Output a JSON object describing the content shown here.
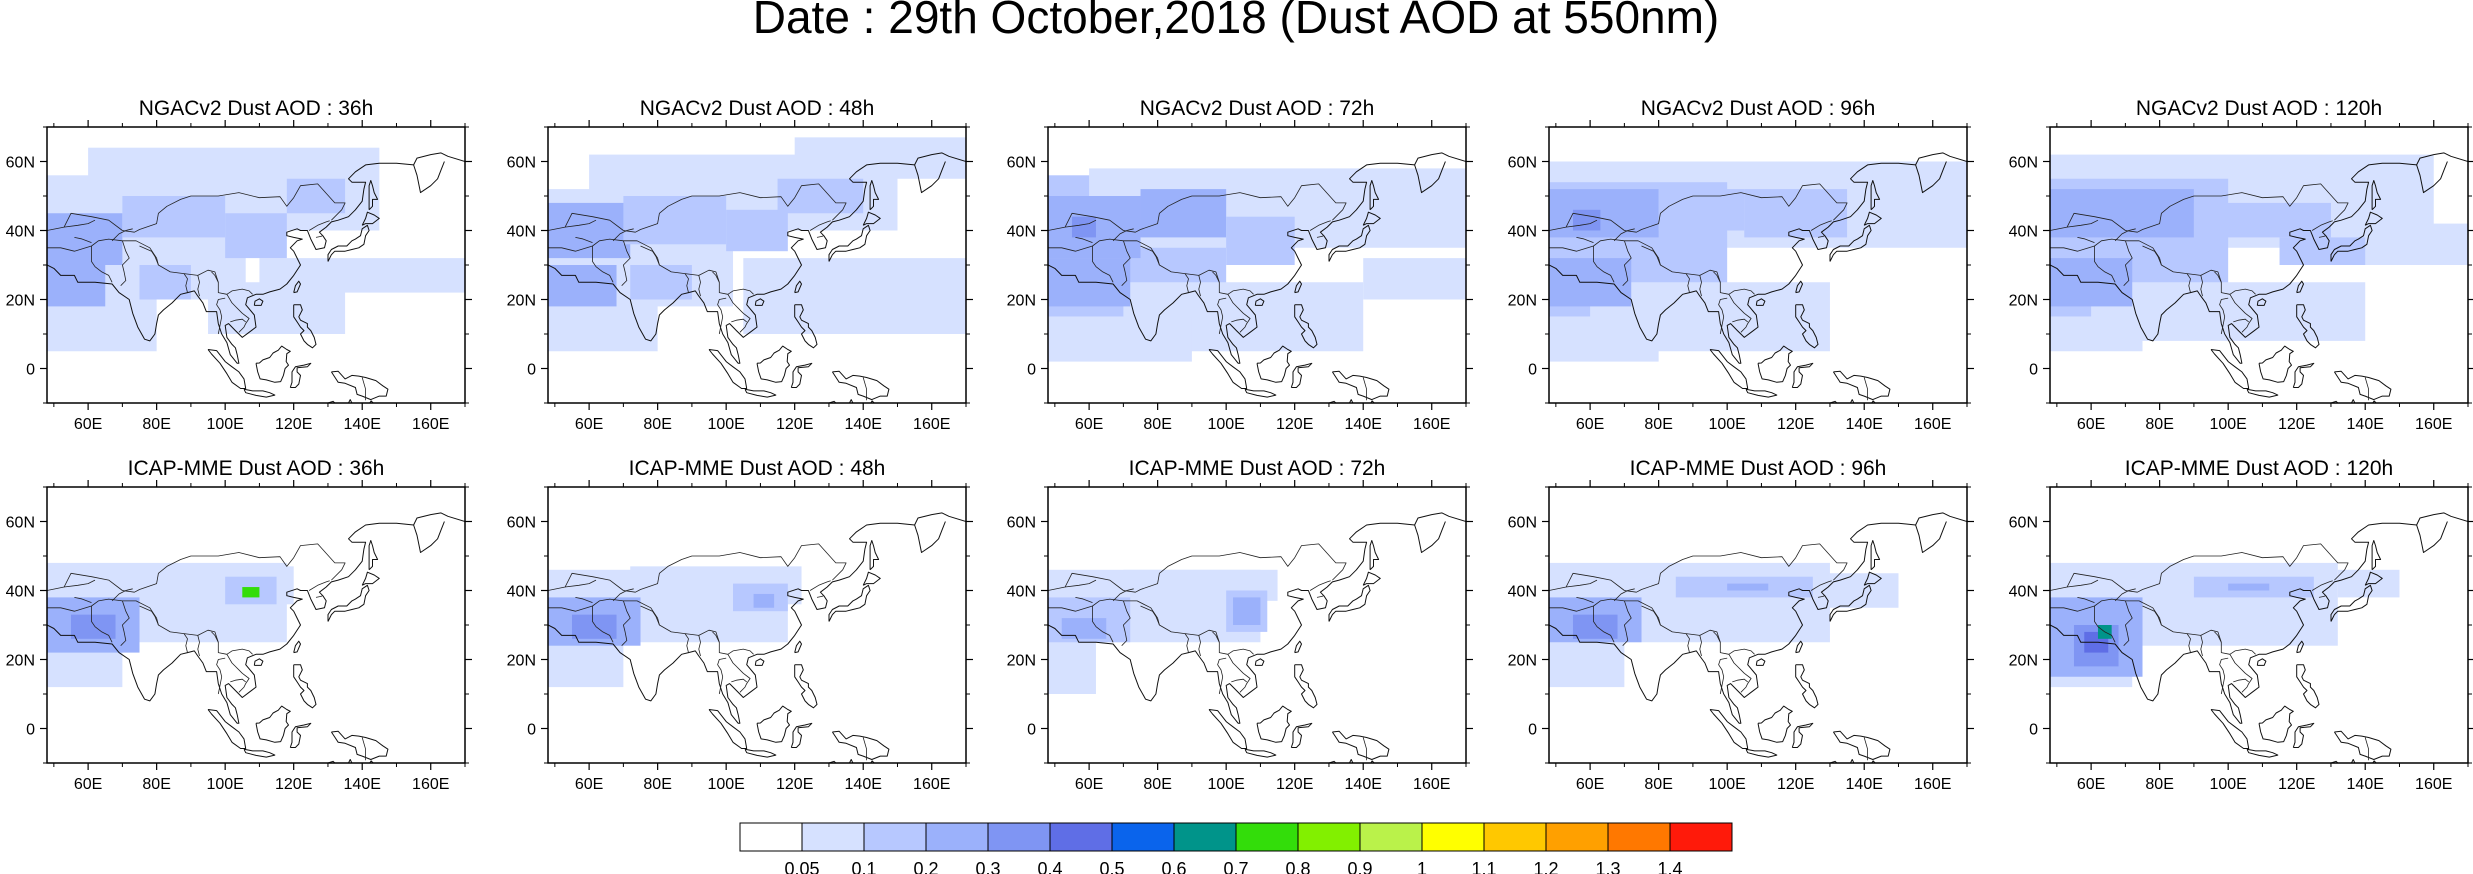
{
  "title": "Date : 29th October,2018 (Dust AOD at 550nm)",
  "rows": [
    {
      "model": "NGACv2",
      "panels": [
        {
          "title": "NGACv2 Dust AOD : 36h"
        },
        {
          "title": "NGACv2 Dust AOD : 48h"
        },
        {
          "title": "NGACv2 Dust AOD : 72h"
        },
        {
          "title": "NGACv2 Dust AOD : 96h"
        },
        {
          "title": "NGACv2 Dust AOD : 120h"
        }
      ]
    },
    {
      "model": "ICAP-MME",
      "panels": [
        {
          "title": "ICAP-MME Dust AOD : 36h"
        },
        {
          "title": "ICAP-MME Dust AOD : 48h"
        },
        {
          "title": "ICAP-MME Dust AOD : 72h"
        },
        {
          "title": "ICAP-MME Dust AOD : 96h"
        },
        {
          "title": "ICAP-MME Dust AOD : 120h"
        }
      ]
    }
  ],
  "axes": {
    "lon_ticks": [
      "60E",
      "80E",
      "100E",
      "120E",
      "140E",
      "160E"
    ],
    "lon_values": [
      60,
      80,
      100,
      120,
      140,
      160
    ],
    "lon_range": [
      48,
      170
    ],
    "lat_ticks": [
      "60N",
      "40N",
      "20N",
      "0"
    ],
    "lat_values": [
      60,
      40,
      20,
      0
    ],
    "lat_range": [
      -10,
      70
    ]
  },
  "colorbar": {
    "labels": [
      "0.05",
      "0.1",
      "0.2",
      "0.3",
      "0.4",
      "0.5",
      "0.6",
      "0.7",
      "0.8",
      "0.9",
      "1",
      "1.1",
      "1.2",
      "1.3",
      "1.4"
    ],
    "colors": [
      "#ffffff",
      "#d6e1ff",
      "#b7c8ff",
      "#9bb1fb",
      "#7f95f3",
      "#5f6ee6",
      "#0a64ec",
      "#00948a",
      "#33dd0a",
      "#82f000",
      "#baf24a",
      "#ffff00",
      "#ffc800",
      "#ffa000",
      "#ff7800",
      "#ff1a0a"
    ]
  }
}
